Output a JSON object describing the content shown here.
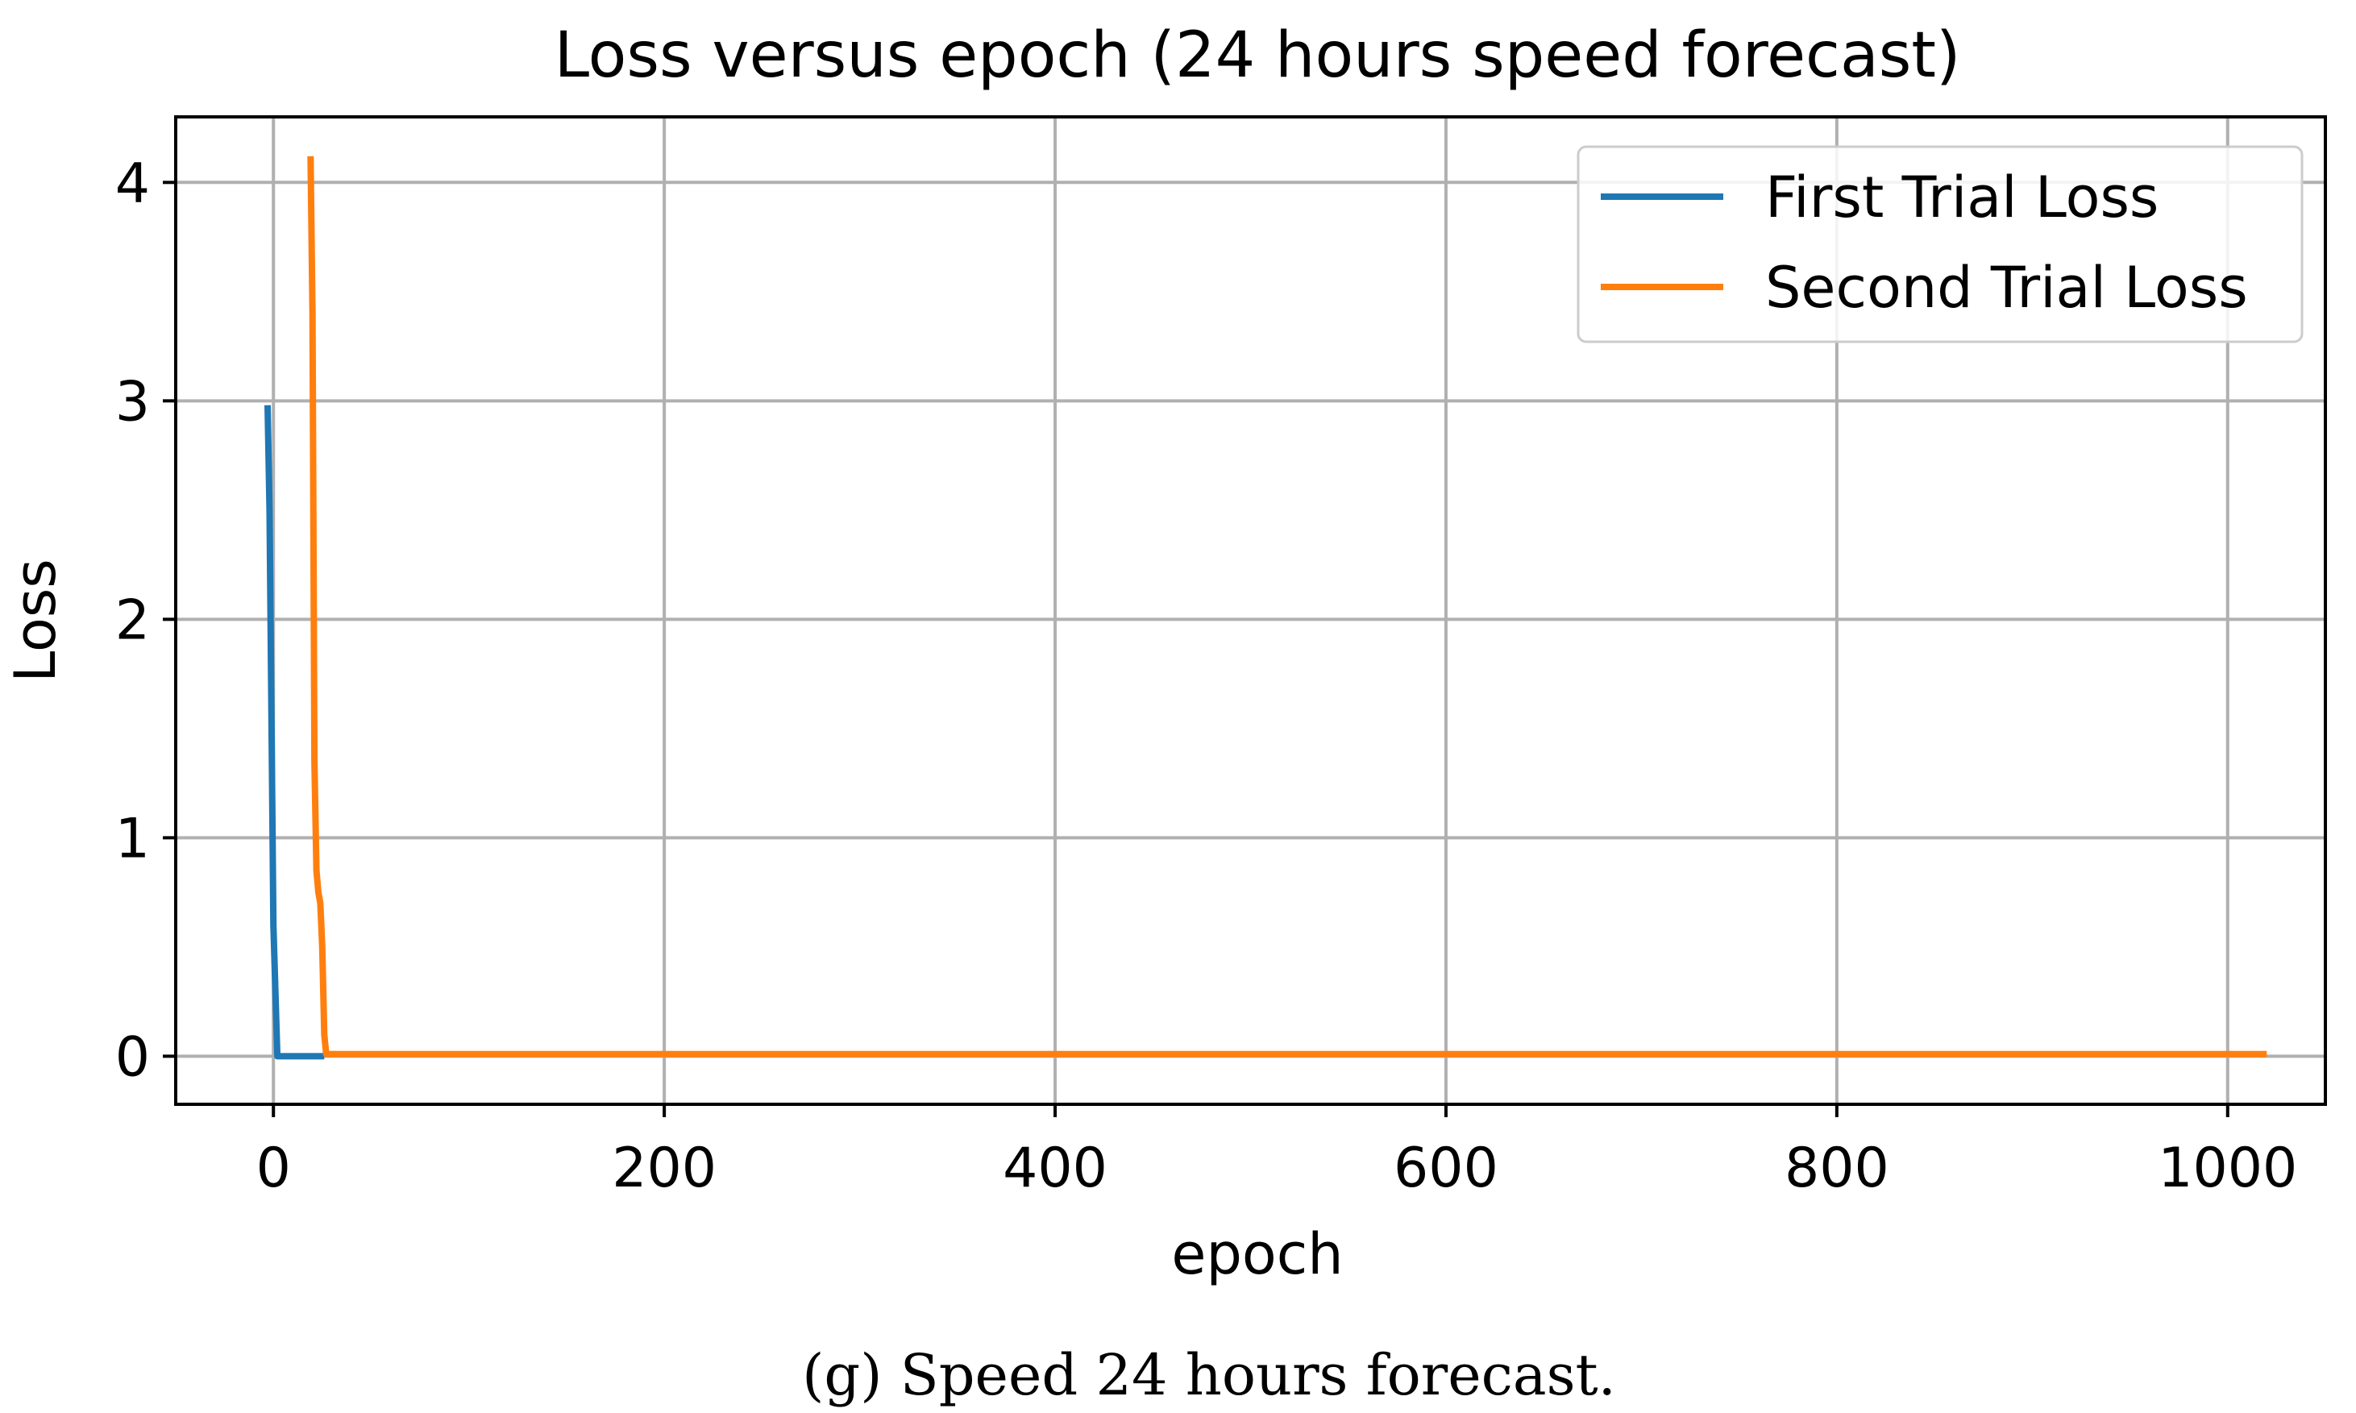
{
  "chart_data": {
    "type": "line",
    "title": "Loss versus epoch   (24 hours speed forecast)",
    "xlabel": "epoch",
    "ylabel": "Loss",
    "xlim": [
      -50,
      1050
    ],
    "ylim": [
      -0.22,
      4.3
    ],
    "xticks": [
      0,
      200,
      400,
      600,
      800,
      1000
    ],
    "yticks": [
      0,
      1,
      2,
      3,
      4
    ],
    "grid": true,
    "legend_position": "top-right",
    "series": [
      {
        "name": "First Trial Loss",
        "color": "#1f77b4",
        "x": [
          -3,
          -2,
          0,
          2,
          5,
          10,
          15,
          20,
          26
        ],
        "y": [
          2.98,
          2.5,
          0.6,
          0.0,
          0.0,
          0.0,
          0.0,
          0.0,
          0.0
        ]
      },
      {
        "name": "Second Trial Loss",
        "color": "#ff7f0e",
        "x": [
          19,
          20,
          21,
          22,
          23,
          24,
          25,
          26,
          27,
          30,
          40,
          100,
          200,
          400,
          600,
          800,
          1000,
          1020
        ],
        "y": [
          4.12,
          3.4,
          1.35,
          0.85,
          0.75,
          0.7,
          0.5,
          0.1,
          0.01,
          0.01,
          0.01,
          0.01,
          0.01,
          0.01,
          0.01,
          0.01,
          0.01,
          0.01
        ]
      }
    ]
  },
  "caption": "(g) Speed 24 hours forecast."
}
